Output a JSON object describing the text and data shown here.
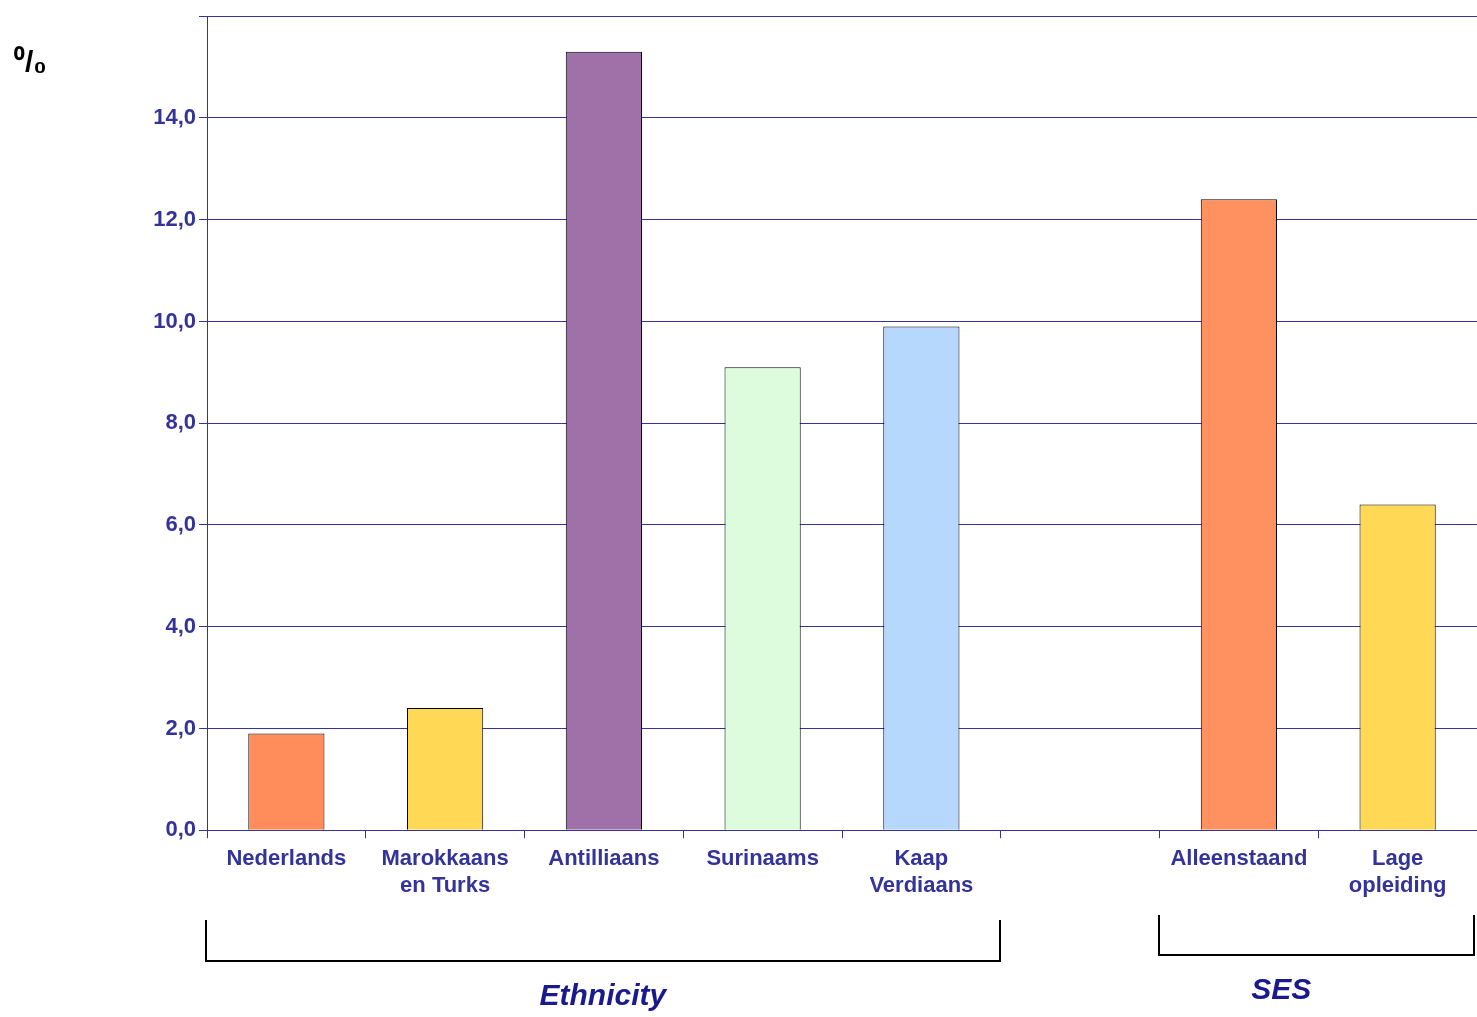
{
  "chart_data": {
    "type": "bar",
    "ylabel": "⁰/₀",
    "categories": [
      "Nederlands",
      "Marokkaans en Turks",
      "Antilliaans",
      "Surinaams",
      "Kaap Verdiaans",
      null,
      "Alleenstaand",
      "Lage opleiding"
    ],
    "values": [
      1.9,
      2.4,
      15.3,
      9.1,
      9.9,
      null,
      12.4,
      6.4
    ],
    "colors": [
      "#ff8c5a",
      "#ffd955",
      "#a070a8",
      "#ddfcdd",
      "#b6d8fc",
      "#ffffff",
      "#ff9060",
      "#ffd955"
    ],
    "ylim": [
      0,
      16
    ],
    "yticks": [
      {
        "value": 0,
        "label": "0,0"
      },
      {
        "value": 2,
        "label": "2,0"
      },
      {
        "value": 4,
        "label": "4,0"
      },
      {
        "value": 6,
        "label": "6,0"
      },
      {
        "value": 8,
        "label": "8,0"
      },
      {
        "value": 10,
        "label": "10,0"
      },
      {
        "value": 12,
        "label": "12,0"
      },
      {
        "value": 14,
        "label": "14,0"
      },
      {
        "value": 16,
        "label": null
      }
    ],
    "grid": "y",
    "annotations": [
      "Ethnicity",
      "SES"
    ]
  }
}
